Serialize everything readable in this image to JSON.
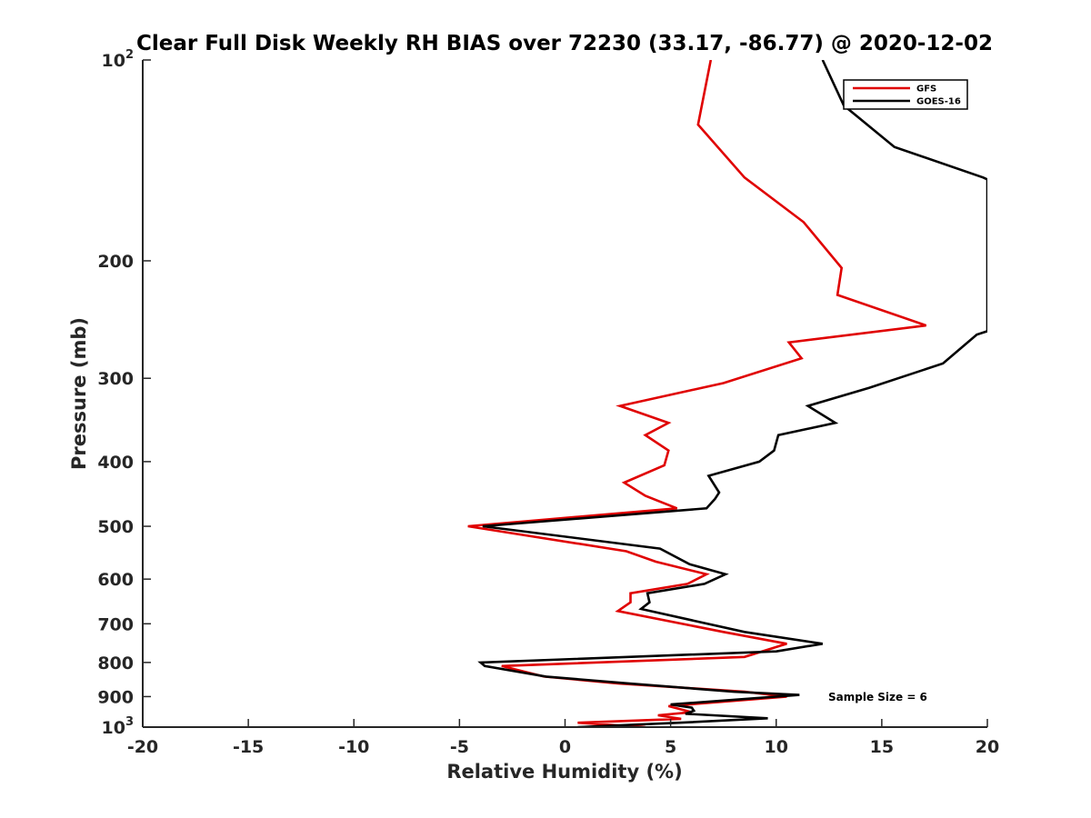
{
  "chart_data": {
    "type": "line",
    "title": "Clear Full Disk Weekly RH BIAS over 72230 (33.17, -86.77) @ 2020-12-02",
    "xlabel": "Relative Humidity (%)",
    "ylabel": "Pressure (mb)",
    "xlim": [
      -20,
      20
    ],
    "ylim": [
      100,
      1000
    ],
    "yscale": "log",
    "yreversed": true,
    "x_ticks": [
      -20,
      -15,
      -10,
      -5,
      0,
      5,
      10,
      15,
      20
    ],
    "x_tick_labels": [
      "-20",
      "-15",
      "-10",
      "-5",
      "0",
      "5",
      "10",
      "15",
      "20"
    ],
    "y_ticks": [
      {
        "value": 100,
        "base": "10",
        "exp": "2"
      },
      {
        "value": 200,
        "base": "200",
        "exp": ""
      },
      {
        "value": 300,
        "base": "300",
        "exp": ""
      },
      {
        "value": 400,
        "base": "400",
        "exp": ""
      },
      {
        "value": 500,
        "base": "500",
        "exp": ""
      },
      {
        "value": 600,
        "base": "600",
        "exp": ""
      },
      {
        "value": 700,
        "base": "700",
        "exp": ""
      },
      {
        "value": 800,
        "base": "800",
        "exp": ""
      },
      {
        "value": 900,
        "base": "900",
        "exp": ""
      },
      {
        "value": 1000,
        "base": "10",
        "exp": "3"
      }
    ],
    "legend_position": "top-right",
    "annotation": "Sample Size = 6",
    "series": [
      {
        "name": "GFS",
        "color": "#e00000",
        "points": [
          [
            6.9,
            100
          ],
          [
            6.3,
            125
          ],
          [
            8.5,
            150
          ],
          [
            11.3,
            175
          ],
          [
            13.1,
            205
          ],
          [
            12.9,
            225
          ],
          [
            17.1,
            250
          ],
          [
            10.6,
            265
          ],
          [
            11.2,
            280
          ],
          [
            7.5,
            305
          ],
          [
            2.6,
            330
          ],
          [
            4.9,
            350
          ],
          [
            3.8,
            365
          ],
          [
            4.9,
            385
          ],
          [
            4.7,
            405
          ],
          [
            2.8,
            430
          ],
          [
            3.8,
            450
          ],
          [
            5.3,
            470
          ],
          [
            -4.6,
            500
          ],
          [
            2.9,
            545
          ],
          [
            4.3,
            565
          ],
          [
            6.7,
            590
          ],
          [
            5.8,
            610
          ],
          [
            3.1,
            630
          ],
          [
            3.1,
            650
          ],
          [
            2.5,
            670
          ],
          [
            7.5,
            720
          ],
          [
            10.5,
            750
          ],
          [
            8.5,
            785
          ],
          [
            -3.0,
            810
          ],
          [
            -1.0,
            840
          ],
          [
            2.5,
            860
          ],
          [
            8.5,
            885
          ],
          [
            10.5,
            900
          ],
          [
            4.9,
            930
          ],
          [
            6.0,
            950
          ],
          [
            4.4,
            960
          ],
          [
            5.5,
            972
          ],
          [
            0.6,
            985
          ],
          [
            3.8,
            1000
          ]
        ]
      },
      {
        "name": "GOES-16",
        "color": "#000000",
        "points": [
          [
            12.2,
            100
          ],
          [
            13.2,
            117
          ],
          [
            15.6,
            135
          ],
          [
            19.8,
            150
          ],
          [
            20.0,
            151
          ],
          [
            20.0,
            255
          ],
          [
            19.5,
            258
          ],
          [
            17.9,
            285
          ],
          [
            14.4,
            310
          ],
          [
            11.5,
            330
          ],
          [
            12.8,
            350
          ],
          [
            10.1,
            365
          ],
          [
            9.9,
            385
          ],
          [
            9.2,
            400
          ],
          [
            6.8,
            420
          ],
          [
            7.3,
            445
          ],
          [
            7.1,
            455
          ],
          [
            6.7,
            470
          ],
          [
            -3.9,
            500
          ],
          [
            4.5,
            540
          ],
          [
            5.9,
            570
          ],
          [
            7.6,
            590
          ],
          [
            6.6,
            610
          ],
          [
            3.9,
            630
          ],
          [
            4.0,
            650
          ],
          [
            3.6,
            665
          ],
          [
            8.5,
            720
          ],
          [
            12.2,
            750
          ],
          [
            10.0,
            770
          ],
          [
            -4.0,
            800
          ],
          [
            -3.8,
            810
          ],
          [
            -0.9,
            840
          ],
          [
            3.0,
            860
          ],
          [
            8.0,
            885
          ],
          [
            11.1,
            895
          ],
          [
            5.0,
            925
          ],
          [
            6.0,
            935
          ],
          [
            6.1,
            945
          ],
          [
            5.7,
            955
          ],
          [
            9.6,
            970
          ],
          [
            5.4,
            985
          ],
          [
            0.6,
            1000
          ]
        ]
      }
    ]
  }
}
